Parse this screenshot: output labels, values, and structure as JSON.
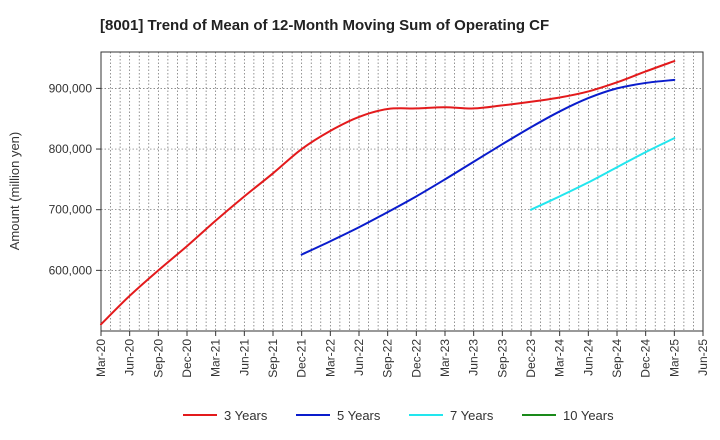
{
  "chart_data": {
    "type": "line",
    "title": "[8001]  Trend of Mean of 12-Month Moving Sum of Operating CF",
    "xlabel": "",
    "ylabel": "Amount (million yen)",
    "ylim": [
      500000,
      960000
    ],
    "yticks": [
      600000,
      700000,
      800000,
      900000
    ],
    "ytick_labels": [
      "600,000",
      "700,000",
      "800,000",
      "900,000"
    ],
    "xticks": [
      "Mar-20",
      "Jun-20",
      "Sep-20",
      "Dec-20",
      "Mar-21",
      "Jun-21",
      "Sep-21",
      "Dec-21",
      "Mar-22",
      "Jun-22",
      "Sep-22",
      "Dec-22",
      "Mar-23",
      "Jun-23",
      "Sep-23",
      "Dec-23",
      "Mar-24",
      "Jun-24",
      "Sep-24",
      "Dec-24",
      "Mar-25",
      "Jun-25"
    ],
    "x_months": [
      "2020-03",
      "2020-04",
      "2020-05",
      "2020-06",
      "2020-07",
      "2020-08",
      "2020-09",
      "2020-10",
      "2020-11",
      "2020-12",
      "2021-01",
      "2021-02",
      "2021-03",
      "2021-04",
      "2021-05",
      "2021-06",
      "2021-07",
      "2021-08",
      "2021-09",
      "2021-10",
      "2021-11",
      "2021-12",
      "2022-01",
      "2022-02",
      "2022-03",
      "2022-04",
      "2022-05",
      "2022-06",
      "2022-07",
      "2022-08",
      "2022-09",
      "2022-10",
      "2022-11",
      "2022-12",
      "2023-01",
      "2023-02",
      "2023-03",
      "2023-04",
      "2023-05",
      "2023-06",
      "2023-07",
      "2023-08",
      "2023-09",
      "2023-10",
      "2023-11",
      "2023-12",
      "2024-01",
      "2024-02",
      "2024-03",
      "2024-04",
      "2024-05",
      "2024-06",
      "2024-07",
      "2024-08",
      "2024-09",
      "2024-10",
      "2024-11",
      "2024-12",
      "2025-01",
      "2025-02",
      "2025-03",
      "2025-04",
      "2025-05",
      "2025-06"
    ],
    "grid": true,
    "legend_position": "bottom",
    "series": [
      {
        "name": "3 Years",
        "color": "#e31a1c",
        "points": [
          [
            "2020-03",
            511000
          ],
          [
            "2020-06",
            558000
          ],
          [
            "2020-09",
            600000
          ],
          [
            "2020-12",
            640000
          ],
          [
            "2021-03",
            682000
          ],
          [
            "2021-06",
            722000
          ],
          [
            "2021-09",
            760000
          ],
          [
            "2021-12",
            800000
          ],
          [
            "2022-03",
            830000
          ],
          [
            "2022-06",
            853000
          ],
          [
            "2022-09",
            866000
          ],
          [
            "2022-12",
            867000
          ],
          [
            "2023-03",
            869000
          ],
          [
            "2023-06",
            867000
          ],
          [
            "2023-09",
            872000
          ],
          [
            "2023-12",
            878000
          ],
          [
            "2024-03",
            885000
          ],
          [
            "2024-06",
            895000
          ],
          [
            "2024-09",
            910000
          ],
          [
            "2024-12",
            928000
          ],
          [
            "2025-03",
            945000
          ]
        ]
      },
      {
        "name": "5 Years",
        "color": "#0a1ccc",
        "points": [
          [
            "2021-12",
            626000
          ],
          [
            "2022-03",
            648000
          ],
          [
            "2022-06",
            671000
          ],
          [
            "2022-09",
            696000
          ],
          [
            "2022-12",
            722000
          ],
          [
            "2023-03",
            750000
          ],
          [
            "2023-06",
            779000
          ],
          [
            "2023-09",
            808000
          ],
          [
            "2023-12",
            836000
          ],
          [
            "2024-03",
            862000
          ],
          [
            "2024-06",
            884000
          ],
          [
            "2024-09",
            900000
          ],
          [
            "2024-12",
            909000
          ],
          [
            "2025-03",
            914000
          ]
        ]
      },
      {
        "name": "7 Years",
        "color": "#22e6ee",
        "points": [
          [
            "2023-12",
            700000
          ],
          [
            "2024-03",
            722000
          ],
          [
            "2024-06",
            745000
          ],
          [
            "2024-09",
            770000
          ],
          [
            "2024-12",
            795000
          ],
          [
            "2025-03",
            818000
          ]
        ]
      },
      {
        "name": "10 Years",
        "color": "#1a8a1a",
        "points": []
      }
    ]
  }
}
